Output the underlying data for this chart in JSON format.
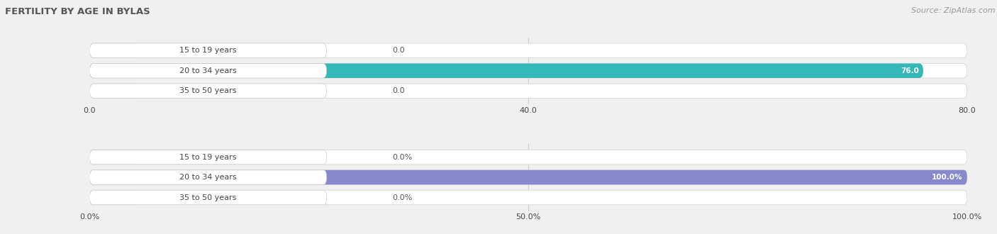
{
  "title": "FERTILITY BY AGE IN BYLAS",
  "source": "Source: ZipAtlas.com",
  "top_chart": {
    "categories": [
      "15 to 19 years",
      "20 to 34 years",
      "35 to 50 years"
    ],
    "values": [
      0.0,
      76.0,
      0.0
    ],
    "max_val": 80.0,
    "xticks": [
      0.0,
      40.0,
      80.0
    ],
    "xtick_labels": [
      "0.0",
      "40.0",
      "80.0"
    ],
    "bar_color": "#35b8b8",
    "bar_color_small": "#7dd4d4",
    "bar_bg_color": "#ffffff",
    "bar_border_color": "#dddddd"
  },
  "bottom_chart": {
    "categories": [
      "15 to 19 years",
      "20 to 34 years",
      "35 to 50 years"
    ],
    "values": [
      0.0,
      100.0,
      0.0
    ],
    "max_val": 100.0,
    "xticks": [
      0.0,
      50.0,
      100.0
    ],
    "xtick_labels": [
      "0.0%",
      "50.0%",
      "100.0%"
    ],
    "bar_color": "#8888cc",
    "bar_color_small": "#aaaadd",
    "bar_bg_color": "#ffffff",
    "bar_border_color": "#dddddd"
  },
  "fig_bg_color": "#f0f0f0",
  "label_color": "#444444",
  "value_color_inside": "#ffffff",
  "value_color_outside": "#555555",
  "title_color": "#555555",
  "source_color": "#999999",
  "grid_color": "#cccccc"
}
